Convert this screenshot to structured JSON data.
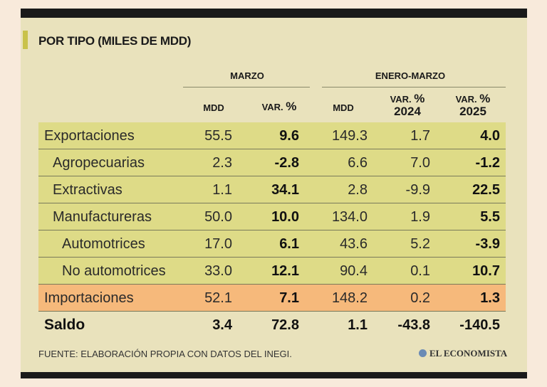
{
  "title": "POR TIPO (MILES DE MDD)",
  "groups": {
    "marzo": "MARZO",
    "enero_marzo": "ENERO-MARZO"
  },
  "subheaders": {
    "mdd1": "MDD",
    "var1_prefix": "VAR.",
    "var1_pct": "%",
    "mdd2": "MDD",
    "var2_prefix": "VAR.",
    "var2_pct": "%",
    "var2_year": "2024",
    "var3_prefix": "VAR.",
    "var3_pct": "%",
    "var3_year": "2025"
  },
  "rows": [
    {
      "label": "Exportaciones",
      "mdd_marzo": "55.5",
      "var_marzo": "9.6",
      "mdd_em": "149.3",
      "var_2024": "1.7",
      "var_2025": "4.0"
    },
    {
      "label": "Agropecuarias",
      "mdd_marzo": "2.3",
      "var_marzo": "-2.8",
      "mdd_em": "6.6",
      "var_2024": "7.0",
      "var_2025": "-1.2"
    },
    {
      "label": "Extractivas",
      "mdd_marzo": "1.1",
      "var_marzo": "34.1",
      "mdd_em": "2.8",
      "var_2024": "-9.9",
      "var_2025": "22.5"
    },
    {
      "label": "Manufactureras",
      "mdd_marzo": "50.0",
      "var_marzo": "10.0",
      "mdd_em": "134.0",
      "var_2024": "1.9",
      "var_2025": "5.5"
    },
    {
      "label": "Automotrices",
      "mdd_marzo": "17.0",
      "var_marzo": "6.1",
      "mdd_em": "43.6",
      "var_2024": "5.2",
      "var_2025": "-3.9"
    },
    {
      "label": "No automotrices",
      "mdd_marzo": "33.0",
      "var_marzo": "12.1",
      "mdd_em": "90.4",
      "var_2024": "0.1",
      "var_2025": "10.7"
    },
    {
      "label": "Importaciones",
      "mdd_marzo": "52.1",
      "var_marzo": "7.1",
      "mdd_em": "148.2",
      "var_2024": "0.2",
      "var_2025": "1.3"
    },
    {
      "label": "Saldo",
      "mdd_marzo": "3.4",
      "var_marzo": "72.8",
      "mdd_em": "1.1",
      "var_2024": "-43.8",
      "var_2025": "-140.5"
    }
  ],
  "source": "FUENTE: ELABORACIÓN PROPIA CON DATOS DEL INEGI.",
  "logo": "EL ECONOMISTA"
}
